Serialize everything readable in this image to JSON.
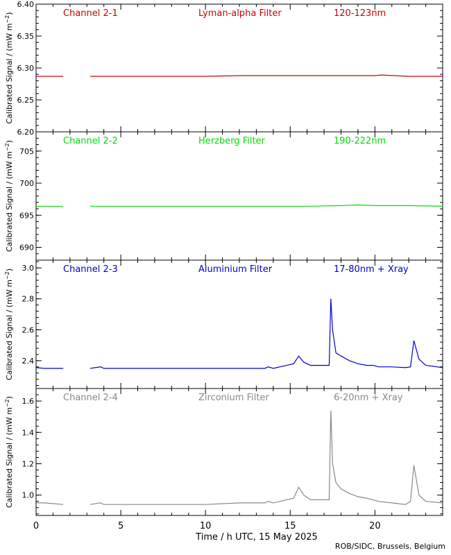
{
  "figure": {
    "xlabel": "Time / h UTC, 15 May 2025",
    "credit": "ROB/SIDC, Brussels, Belgium",
    "ylabel_text": "Calibrated Signal / (mW m",
    "ylabel_sup": "−2",
    "ylabel_close": ")"
  },
  "chart_data": [
    {
      "type": "line",
      "channel": "Channel 2-1",
      "filter": "Lyman-alpha Filter",
      "band": "120-123nm",
      "color": "#cc0000",
      "ylim": [
        6.2,
        6.4
      ],
      "yticks": [
        6.2,
        6.25,
        6.3,
        6.35,
        6.4
      ],
      "ytick_labels": [
        "6.20",
        "6.25",
        "6.30",
        "6.35",
        "6.40"
      ],
      "xlim": [
        0,
        24
      ],
      "xticks": [
        0,
        5,
        10,
        15,
        20
      ],
      "gap": [
        1.6,
        3.2
      ],
      "x": [
        0,
        0.8,
        1.6,
        3.2,
        4,
        6,
        8,
        10,
        12,
        14,
        15,
        16,
        18,
        20,
        20.4,
        22,
        24
      ],
      "y": [
        6.287,
        6.287,
        6.287,
        6.287,
        6.287,
        6.287,
        6.287,
        6.287,
        6.288,
        6.288,
        6.288,
        6.288,
        6.288,
        6.288,
        6.289,
        6.287,
        6.287
      ]
    },
    {
      "type": "line",
      "channel": "Channel 2-2",
      "filter": "Herzberg Filter",
      "band": "190-222nm",
      "color": "#00dd00",
      "ylim": [
        688,
        708
      ],
      "yticks": [
        690,
        695,
        700,
        705
      ],
      "ytick_labels": [
        "690",
        "695",
        "700",
        "705"
      ],
      "xlim": [
        0,
        24
      ],
      "xticks": [
        0,
        5,
        10,
        15,
        20
      ],
      "gap": [
        1.6,
        3.2
      ],
      "x": [
        0,
        1.6,
        3.2,
        6,
        10,
        14,
        16,
        18,
        19,
        20,
        22,
        24
      ],
      "y": [
        696.4,
        696.4,
        696.4,
        696.4,
        696.4,
        696.4,
        696.4,
        696.5,
        696.6,
        696.5,
        696.5,
        696.4
      ]
    },
    {
      "type": "line",
      "channel": "Channel 2-3",
      "filter": "Aluminium Filter",
      "band": "17-80nm + Xray",
      "color": "#0000cc",
      "ylim": [
        2.22,
        3.05
      ],
      "yticks": [
        2.4,
        2.6,
        2.8,
        3.0
      ],
      "ytick_labels": [
        "2.4",
        "2.6",
        "2.8",
        "3.0"
      ],
      "xlim": [
        0,
        24
      ],
      "xticks": [
        0,
        5,
        10,
        15,
        20
      ],
      "gap": [
        1.6,
        3.2
      ],
      "x": [
        0,
        0.5,
        1.6,
        3.2,
        3.8,
        4.0,
        6,
        8,
        10,
        12,
        13.5,
        13.7,
        14,
        14.8,
        15.2,
        15.5,
        15.8,
        16.2,
        17.3,
        17.4,
        17.5,
        17.7,
        18,
        18.5,
        19,
        19.5,
        19.9,
        20.2,
        21,
        21.8,
        22.1,
        22.3,
        22.6,
        23,
        24
      ],
      "y": [
        2.355,
        2.35,
        2.35,
        2.35,
        2.36,
        2.35,
        2.35,
        2.35,
        2.35,
        2.35,
        2.35,
        2.36,
        2.35,
        2.37,
        2.38,
        2.43,
        2.39,
        2.37,
        2.37,
        2.8,
        2.6,
        2.45,
        2.43,
        2.4,
        2.38,
        2.37,
        2.37,
        2.36,
        2.36,
        2.355,
        2.36,
        2.53,
        2.41,
        2.37,
        2.355
      ]
    },
    {
      "type": "line",
      "channel": "Channel 2-4",
      "filter": "Zirconium Filter",
      "band": "6-20nm + Xray",
      "color": "#888888",
      "ylim": [
        0.87,
        1.68
      ],
      "yticks": [
        1.0,
        1.2,
        1.4,
        1.6
      ],
      "ytick_labels": [
        "1.0",
        "1.2",
        "1.4",
        "1.6"
      ],
      "xlim": [
        0,
        24
      ],
      "xticks": [
        0,
        5,
        10,
        15,
        20
      ],
      "gap": [
        1.6,
        3.2
      ],
      "x": [
        0,
        0.5,
        1.6,
        3.2,
        3.8,
        4.0,
        6,
        8,
        10,
        12,
        13.5,
        13.7,
        14,
        14.8,
        15.2,
        15.5,
        15.8,
        16.2,
        17.3,
        17.4,
        17.5,
        17.7,
        18,
        18.5,
        19,
        19.5,
        19.9,
        20.2,
        21,
        21.8,
        22.1,
        22.3,
        22.6,
        23,
        24
      ],
      "y": [
        0.95,
        0.95,
        0.94,
        0.94,
        0.95,
        0.94,
        0.94,
        0.94,
        0.94,
        0.95,
        0.95,
        0.96,
        0.95,
        0.97,
        0.98,
        1.05,
        1.0,
        0.97,
        0.97,
        1.54,
        1.2,
        1.08,
        1.04,
        1.01,
        0.99,
        0.98,
        0.97,
        0.96,
        0.95,
        0.94,
        0.96,
        1.19,
        1.0,
        0.96,
        0.95
      ]
    }
  ]
}
